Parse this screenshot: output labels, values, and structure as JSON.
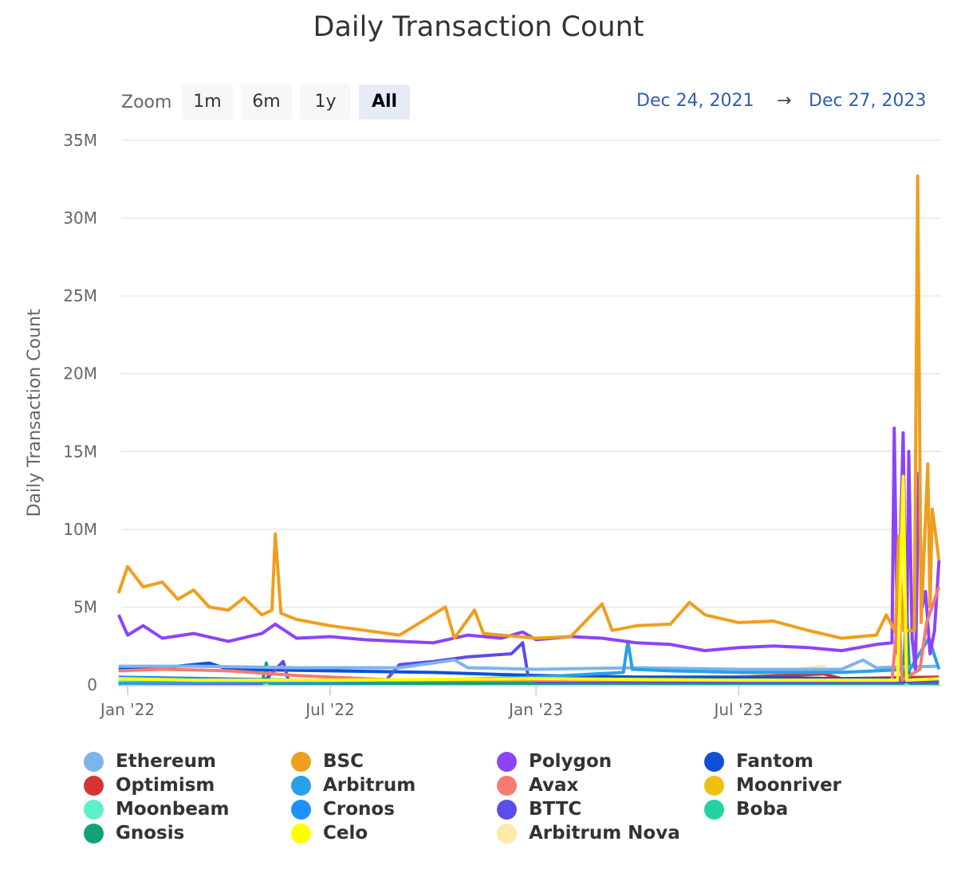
{
  "chart_data": {
    "type": "line",
    "title": "Daily Transaction Count",
    "ylabel": "Daily Transaction Count",
    "xlabel": "",
    "value_unit": "millions",
    "ylim": [
      0,
      35
    ],
    "yticks": [
      0,
      5,
      10,
      15,
      20,
      25,
      30,
      35
    ],
    "ytick_labels": [
      "0",
      "5M",
      "10M",
      "15M",
      "20M",
      "25M",
      "30M",
      "35M"
    ],
    "xticks": [
      "2022-01-01",
      "2022-07-01",
      "2023-01-01",
      "2023-07-01"
    ],
    "xtick_labels": [
      "Jan '22",
      "Jul '22",
      "Jan '23",
      "Jul '23"
    ],
    "xlim": [
      "2021-12-24",
      "2023-12-27"
    ],
    "grid": "horizontal",
    "legend_position": "bottom",
    "series": [
      {
        "name": "Ethereum",
        "color": "#7cb5ec",
        "points": [
          [
            "2021-12-24",
            1.2
          ],
          [
            "2022-03-01",
            1.2
          ],
          [
            "2022-06-01",
            1.1
          ],
          [
            "2022-09-01",
            1.1
          ],
          [
            "2022-10-20",
            1.6
          ],
          [
            "2022-11-01",
            1.1
          ],
          [
            "2023-01-01",
            1.0
          ],
          [
            "2023-04-01",
            1.1
          ],
          [
            "2023-07-01",
            1.0
          ],
          [
            "2023-10-01",
            1.0
          ],
          [
            "2023-10-20",
            1.6
          ],
          [
            "2023-11-01",
            1.1
          ],
          [
            "2023-12-27",
            1.2
          ]
        ]
      },
      {
        "name": "BSC",
        "color": "#f09e1e",
        "points": [
          [
            "2021-12-24",
            5.9
          ],
          [
            "2022-01-01",
            7.6
          ],
          [
            "2022-01-15",
            6.3
          ],
          [
            "2022-02-01",
            6.6
          ],
          [
            "2022-02-15",
            5.5
          ],
          [
            "2022-03-01",
            6.1
          ],
          [
            "2022-03-15",
            5.0
          ],
          [
            "2022-04-01",
            4.8
          ],
          [
            "2022-04-15",
            5.6
          ],
          [
            "2022-05-01",
            4.5
          ],
          [
            "2022-05-10",
            4.8
          ],
          [
            "2022-05-13",
            9.7
          ],
          [
            "2022-05-18",
            4.6
          ],
          [
            "2022-06-01",
            4.2
          ],
          [
            "2022-07-01",
            3.8
          ],
          [
            "2022-08-01",
            3.5
          ],
          [
            "2022-09-01",
            3.2
          ],
          [
            "2022-10-12",
            5.0
          ],
          [
            "2022-10-20",
            3.0
          ],
          [
            "2022-11-07",
            4.8
          ],
          [
            "2022-11-15",
            3.3
          ],
          [
            "2022-12-01",
            3.2
          ],
          [
            "2023-01-01",
            3.0
          ],
          [
            "2023-02-01",
            3.1
          ],
          [
            "2023-03-01",
            5.2
          ],
          [
            "2023-03-10",
            3.5
          ],
          [
            "2023-04-01",
            3.8
          ],
          [
            "2023-05-01",
            3.9
          ],
          [
            "2023-05-18",
            5.3
          ],
          [
            "2023-06-01",
            4.5
          ],
          [
            "2023-07-01",
            4.0
          ],
          [
            "2023-08-01",
            4.1
          ],
          [
            "2023-09-01",
            3.5
          ],
          [
            "2023-10-01",
            3.0
          ],
          [
            "2023-11-01",
            3.2
          ],
          [
            "2023-11-10",
            4.5
          ],
          [
            "2023-11-18",
            3.4
          ],
          [
            "2023-11-21",
            9.6
          ],
          [
            "2023-11-25",
            3.5
          ],
          [
            "2023-12-05",
            3.5
          ],
          [
            "2023-12-08",
            32.7
          ],
          [
            "2023-12-11",
            4.0
          ],
          [
            "2023-12-17",
            14.2
          ],
          [
            "2023-12-19",
            5.0
          ],
          [
            "2023-12-21",
            11.3
          ],
          [
            "2023-12-27",
            8.0
          ]
        ]
      },
      {
        "name": "Polygon",
        "color": "#8c44f7",
        "points": [
          [
            "2021-12-24",
            4.5
          ],
          [
            "2022-01-01",
            3.2
          ],
          [
            "2022-01-15",
            3.8
          ],
          [
            "2022-02-01",
            3.0
          ],
          [
            "2022-03-01",
            3.3
          ],
          [
            "2022-04-01",
            2.8
          ],
          [
            "2022-05-01",
            3.3
          ],
          [
            "2022-05-13",
            3.9
          ],
          [
            "2022-06-01",
            3.0
          ],
          [
            "2022-07-01",
            3.1
          ],
          [
            "2022-08-01",
            2.9
          ],
          [
            "2022-09-01",
            2.8
          ],
          [
            "2022-10-01",
            2.7
          ],
          [
            "2022-11-01",
            3.2
          ],
          [
            "2022-12-01",
            3.0
          ],
          [
            "2022-12-20",
            3.4
          ],
          [
            "2023-01-01",
            2.9
          ],
          [
            "2023-02-01",
            3.1
          ],
          [
            "2023-03-01",
            3.0
          ],
          [
            "2023-04-01",
            2.7
          ],
          [
            "2023-05-01",
            2.6
          ],
          [
            "2023-06-01",
            2.2
          ],
          [
            "2023-07-01",
            2.4
          ],
          [
            "2023-08-01",
            2.5
          ],
          [
            "2023-09-01",
            2.4
          ],
          [
            "2023-10-01",
            2.2
          ],
          [
            "2023-11-01",
            2.6
          ],
          [
            "2023-11-15",
            2.7
          ],
          [
            "2023-11-17",
            16.5
          ],
          [
            "2023-11-20",
            2.0
          ],
          [
            "2023-11-25",
            16.2
          ],
          [
            "2023-11-28",
            1.0
          ],
          [
            "2023-11-30",
            15.0
          ],
          [
            "2023-12-03",
            3.0
          ],
          [
            "2023-12-06",
            1.0
          ],
          [
            "2023-12-09",
            13.6
          ],
          [
            "2023-12-12",
            5.0
          ],
          [
            "2023-12-15",
            6.0
          ],
          [
            "2023-12-19",
            2.0
          ],
          [
            "2023-12-23",
            3.5
          ],
          [
            "2023-12-27",
            8.0
          ]
        ]
      },
      {
        "name": "Fantom",
        "color": "#1050d8",
        "points": [
          [
            "2021-12-24",
            1.0
          ],
          [
            "2022-02-01",
            1.1
          ],
          [
            "2022-03-15",
            1.4
          ],
          [
            "2022-04-01",
            1.0
          ],
          [
            "2022-07-01",
            0.9
          ],
          [
            "2022-10-01",
            0.8
          ],
          [
            "2023-01-01",
            0.6
          ],
          [
            "2023-04-01",
            0.5
          ],
          [
            "2023-07-01",
            0.5
          ],
          [
            "2023-10-01",
            0.4
          ],
          [
            "2023-12-27",
            0.4
          ]
        ]
      },
      {
        "name": "Optimism",
        "color": "#d63333",
        "points": [
          [
            "2021-12-24",
            0.1
          ],
          [
            "2022-06-01",
            0.2
          ],
          [
            "2023-01-01",
            0.3
          ],
          [
            "2023-06-01",
            0.4
          ],
          [
            "2023-09-15",
            0.7
          ],
          [
            "2023-10-01",
            0.4
          ],
          [
            "2023-12-27",
            0.5
          ]
        ]
      },
      {
        "name": "Arbitrum",
        "color": "#2aa0e8",
        "points": [
          [
            "2021-12-24",
            0.1
          ],
          [
            "2022-06-01",
            0.2
          ],
          [
            "2022-10-01",
            0.3
          ],
          [
            "2023-01-01",
            0.5
          ],
          [
            "2023-03-20",
            0.8
          ],
          [
            "2023-03-24",
            2.8
          ],
          [
            "2023-03-28",
            1.0
          ],
          [
            "2023-05-01",
            0.9
          ],
          [
            "2023-07-01",
            0.8
          ],
          [
            "2023-10-01",
            0.8
          ],
          [
            "2023-12-01",
            1.0
          ],
          [
            "2023-12-18",
            3.0
          ],
          [
            "2023-12-27",
            1.0
          ]
        ]
      },
      {
        "name": "Avax",
        "color": "#f77a73",
        "points": [
          [
            "2021-12-24",
            0.9
          ],
          [
            "2022-02-01",
            1.0
          ],
          [
            "2022-04-01",
            0.9
          ],
          [
            "2022-06-01",
            0.6
          ],
          [
            "2022-09-01",
            0.3
          ],
          [
            "2023-01-01",
            0.3
          ],
          [
            "2023-07-01",
            0.3
          ],
          [
            "2023-11-15",
            0.3
          ],
          [
            "2023-11-21",
            5.0
          ],
          [
            "2023-11-24",
            0.3
          ],
          [
            "2023-12-10",
            1.0
          ],
          [
            "2023-12-16",
            4.0
          ],
          [
            "2023-12-27",
            6.3
          ]
        ]
      },
      {
        "name": "Moonriver",
        "color": "#f0c010",
        "points": [
          [
            "2021-12-24",
            0.1
          ],
          [
            "2023-12-27",
            0.1
          ]
        ]
      },
      {
        "name": "Moonbeam",
        "color": "#5ef0c8",
        "points": [
          [
            "2021-12-24",
            0.2
          ],
          [
            "2022-06-01",
            0.1
          ],
          [
            "2023-12-27",
            0.1
          ]
        ]
      },
      {
        "name": "Cronos",
        "color": "#1e90ff",
        "points": [
          [
            "2021-12-24",
            0.5
          ],
          [
            "2022-06-01",
            0.3
          ],
          [
            "2023-01-01",
            0.2
          ],
          [
            "2023-12-27",
            0.2
          ]
        ]
      },
      {
        "name": "BTTC",
        "color": "#5b4ee6",
        "points": [
          [
            "2021-12-24",
            0.1
          ],
          [
            "2022-05-01",
            0.1
          ],
          [
            "2022-05-20",
            1.5
          ],
          [
            "2022-05-25",
            0.2
          ],
          [
            "2022-08-20",
            0.3
          ],
          [
            "2022-09-01",
            1.3
          ],
          [
            "2022-10-01",
            1.5
          ],
          [
            "2022-11-01",
            1.8
          ],
          [
            "2022-12-10",
            2.0
          ],
          [
            "2022-12-20",
            2.7
          ],
          [
            "2022-12-25",
            0.5
          ],
          [
            "2023-01-01",
            0.2
          ],
          [
            "2023-12-27",
            0.2
          ]
        ]
      },
      {
        "name": "Boba",
        "color": "#22d3a0",
        "points": [
          [
            "2021-12-24",
            0.05
          ],
          [
            "2023-12-27",
            0.05
          ]
        ]
      },
      {
        "name": "Gnosis",
        "color": "#12a27a",
        "points": [
          [
            "2021-12-24",
            0.1
          ],
          [
            "2022-05-01",
            0.1
          ],
          [
            "2022-05-05",
            1.4
          ],
          [
            "2022-05-08",
            0.1
          ],
          [
            "2023-11-25",
            0.1
          ],
          [
            "2023-11-28",
            5.0
          ],
          [
            "2023-12-01",
            0.1
          ],
          [
            "2023-12-27",
            0.1
          ]
        ]
      },
      {
        "name": "Celo",
        "color": "#ffff00",
        "points": [
          [
            "2021-12-24",
            0.4
          ],
          [
            "2022-03-01",
            0.3
          ],
          [
            "2022-07-01",
            0.3
          ],
          [
            "2023-01-01",
            0.4
          ],
          [
            "2023-07-01",
            0.3
          ],
          [
            "2023-11-20",
            0.3
          ],
          [
            "2023-11-25",
            13.4
          ],
          [
            "2023-11-28",
            0.3
          ],
          [
            "2023-12-27",
            0.4
          ]
        ]
      },
      {
        "name": "Arbitrum Nova",
        "color": "#fde9a8",
        "points": [
          [
            "2022-08-01",
            0.05
          ],
          [
            "2023-01-01",
            0.2
          ],
          [
            "2023-06-01",
            0.3
          ],
          [
            "2023-09-15",
            1.2
          ],
          [
            "2023-09-20",
            0.3
          ],
          [
            "2023-12-27",
            0.5
          ]
        ]
      }
    ]
  },
  "controls": {
    "zoom_label": "Zoom",
    "zoom_buttons": [
      "1m",
      "6m",
      "1y",
      "All"
    ],
    "active_zoom": "All",
    "range_from": "Dec 24, 2021",
    "range_arrow": "→",
    "range_to": "Dec 27, 2023"
  }
}
